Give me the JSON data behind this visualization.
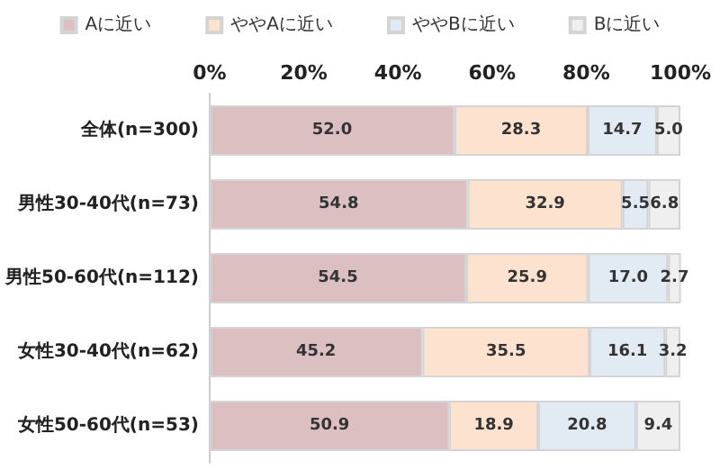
{
  "chart_data": {
    "type": "bar",
    "orientation": "horizontal",
    "stacked": true,
    "legend": "top",
    "grid": false,
    "categories": [
      "全体(n=300)",
      "男性30-40代(n=73)",
      "男性50-60代(n=112)",
      "女性30-40代(n=62)",
      "女性50-60代(n=53)"
    ],
    "xlim": [
      0,
      100
    ],
    "xticks": [
      {
        "value": 0,
        "label": "0%"
      },
      {
        "value": 20,
        "label": "20%"
      },
      {
        "value": 40,
        "label": "40%"
      },
      {
        "value": 60,
        "label": "60%"
      },
      {
        "value": 80,
        "label": "80%"
      },
      {
        "value": 100,
        "label": "100%"
      }
    ],
    "series": [
      {
        "name": "Aに近い",
        "color": "#dcbfc0",
        "values": [
          52.0,
          54.8,
          54.5,
          45.2,
          50.9
        ],
        "value_labels": [
          "52.0",
          "54.8",
          "54.5",
          "45.2",
          "50.9"
        ]
      },
      {
        "name": "ややAに近い",
        "color": "#fde3cf",
        "values": [
          28.3,
          32.9,
          25.9,
          35.5,
          18.9
        ],
        "value_labels": [
          "28.3",
          "32.9",
          "25.9",
          "35.5",
          "18.9"
        ]
      },
      {
        "name": "ややBに近い",
        "color": "#e2eaf4",
        "values": [
          14.7,
          5.5,
          17.0,
          16.1,
          20.8
        ],
        "value_labels": [
          "14.7",
          "5.5",
          "17.0",
          "16.1",
          "20.8"
        ]
      },
      {
        "name": "Bに近い",
        "color": "#efefef",
        "values": [
          5.0,
          6.8,
          2.7,
          3.2,
          9.4
        ],
        "value_labels": [
          "5.0",
          "6.8",
          "2.7",
          "3.2",
          "9.4"
        ]
      }
    ]
  }
}
